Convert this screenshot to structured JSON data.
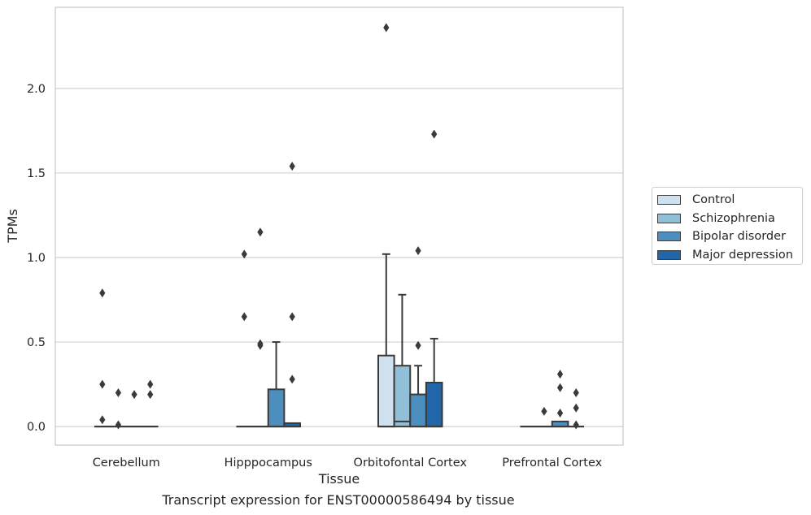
{
  "caption": "Transcript expression for ENST00000586494 by tissue",
  "colors": {
    "Control": "#cfe0ef",
    "Schizophrenia": "#92bfd8",
    "Bipolar disorder": "#4c8fbe",
    "Major depression": "#2066a8",
    "box_edge": "#3a3a3a",
    "grid": "#d0d0d0"
  },
  "chart_data": {
    "type": "box",
    "xlabel": "Tissue",
    "ylabel": "TPMs",
    "ylim": [
      -0.11,
      2.48
    ],
    "yticks": [
      "0.0",
      "0.5",
      "1.0",
      "1.5",
      "2.0"
    ],
    "grid": "horizontal",
    "legend_position": "right",
    "categories": [
      "Cerebellum",
      "Hipppocampus",
      "Orbitofontal Cortex",
      "Prefrontal Cortex"
    ],
    "hue_order": [
      "Control",
      "Schizophrenia",
      "Bipolar disorder",
      "Major depression"
    ],
    "boxes": [
      {
        "category": "Cerebellum",
        "group": "Control",
        "q1": 0,
        "median": 0,
        "q3": 0,
        "whisker_low": 0,
        "whisker_high": 0,
        "outliers": [
          0.79,
          0.25,
          0.04
        ]
      },
      {
        "category": "Cerebellum",
        "group": "Schizophrenia",
        "q1": 0,
        "median": 0,
        "q3": 0,
        "whisker_low": 0,
        "whisker_high": 0,
        "outliers": [
          0.2,
          0.01
        ]
      },
      {
        "category": "Cerebellum",
        "group": "Bipolar disorder",
        "q1": 0,
        "median": 0,
        "q3": 0,
        "whisker_low": 0,
        "whisker_high": 0,
        "outliers": [
          0.19
        ]
      },
      {
        "category": "Cerebellum",
        "group": "Major depression",
        "q1": 0,
        "median": 0,
        "q3": 0,
        "whisker_low": 0,
        "whisker_high": 0,
        "outliers": [
          0.25,
          0.19
        ]
      },
      {
        "category": "Hipppocampus",
        "group": "Control",
        "q1": 0,
        "median": 0,
        "q3": 0,
        "whisker_low": 0,
        "whisker_high": 0,
        "outliers": [
          1.02,
          0.65
        ]
      },
      {
        "category": "Hipppocampus",
        "group": "Schizophrenia",
        "q1": 0,
        "median": 0,
        "q3": 0,
        "whisker_low": 0,
        "whisker_high": 0,
        "outliers": [
          1.15,
          0.49,
          0.48
        ]
      },
      {
        "category": "Hipppocampus",
        "group": "Bipolar disorder",
        "q1": 0,
        "median": 0,
        "q3": 0.22,
        "whisker_low": 0,
        "whisker_high": 0.5,
        "outliers": []
      },
      {
        "category": "Hipppocampus",
        "group": "Major depression",
        "q1": 0,
        "median": 0,
        "q3": 0.02,
        "whisker_low": 0,
        "whisker_high": 0.02,
        "outliers": [
          1.54,
          0.65,
          0.28
        ]
      },
      {
        "category": "Orbitofontal Cortex",
        "group": "Control",
        "q1": 0,
        "median": 0,
        "q3": 0.42,
        "whisker_low": 0,
        "whisker_high": 1.02,
        "outliers": [
          2.36
        ]
      },
      {
        "category": "Orbitofontal Cortex",
        "group": "Schizophrenia",
        "q1": 0,
        "median": 0.03,
        "q3": 0.36,
        "whisker_low": 0,
        "whisker_high": 0.78,
        "outliers": []
      },
      {
        "category": "Orbitofontal Cortex",
        "group": "Bipolar disorder",
        "q1": 0,
        "median": 0,
        "q3": 0.19,
        "whisker_low": 0,
        "whisker_high": 0.36,
        "outliers": [
          1.04,
          0.48
        ]
      },
      {
        "category": "Orbitofontal Cortex",
        "group": "Major depression",
        "q1": 0,
        "median": 0,
        "q3": 0.26,
        "whisker_low": 0,
        "whisker_high": 0.52,
        "outliers": [
          1.73
        ]
      },
      {
        "category": "Prefrontal Cortex",
        "group": "Control",
        "q1": 0,
        "median": 0,
        "q3": 0,
        "whisker_low": 0,
        "whisker_high": 0,
        "outliers": []
      },
      {
        "category": "Prefrontal Cortex",
        "group": "Schizophrenia",
        "q1": 0,
        "median": 0,
        "q3": 0,
        "whisker_low": 0,
        "whisker_high": 0,
        "outliers": [
          0.09
        ]
      },
      {
        "category": "Prefrontal Cortex",
        "group": "Bipolar disorder",
        "q1": 0,
        "median": 0,
        "q3": 0.03,
        "whisker_low": 0,
        "whisker_high": 0.03,
        "outliers": [
          0.31,
          0.23,
          0.08
        ]
      },
      {
        "category": "Prefrontal Cortex",
        "group": "Major depression",
        "q1": 0,
        "median": 0,
        "q3": 0,
        "whisker_low": 0,
        "whisker_high": 0,
        "outliers": [
          0.2,
          0.11,
          0.01
        ]
      }
    ]
  }
}
